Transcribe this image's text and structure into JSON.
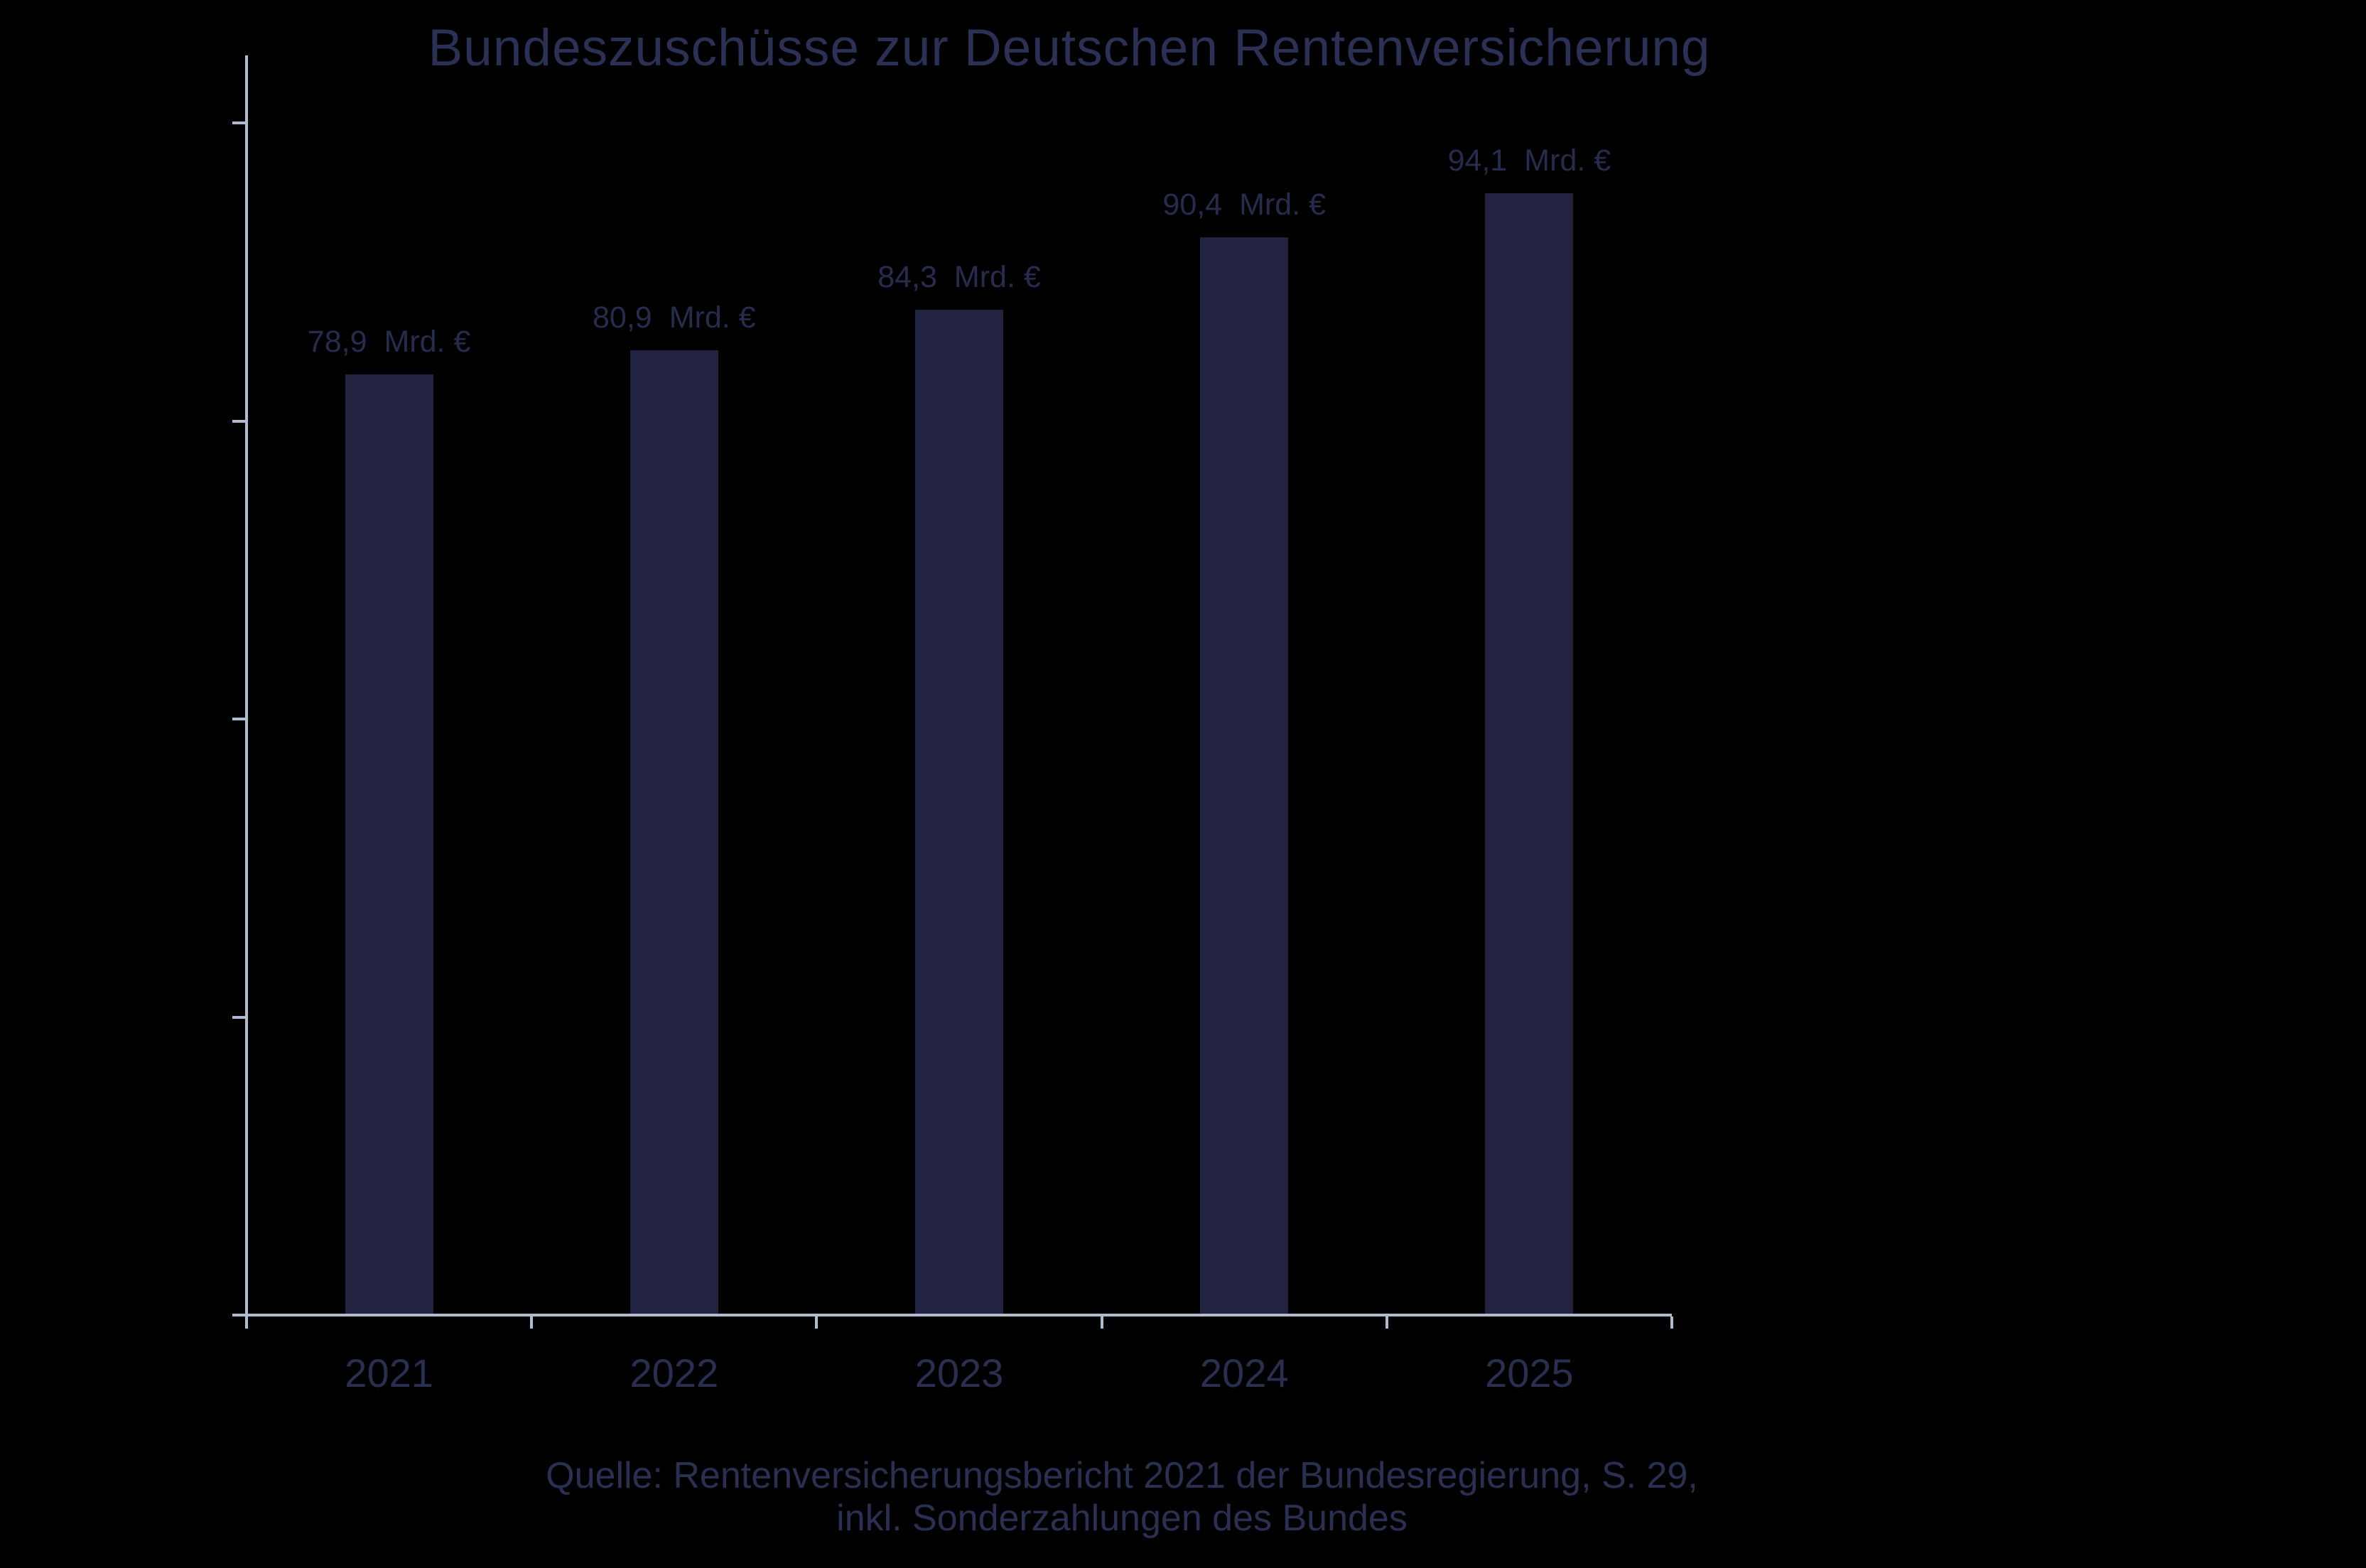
{
  "chart_data": {
    "type": "bar",
    "title": "Bundeszuschüsse zur Deutschen Rentenversicherung",
    "categories": [
      "2021",
      "2022",
      "2023",
      "2024",
      "2025"
    ],
    "values": [
      78.9,
      80.9,
      84.3,
      90.4,
      94.1
    ],
    "value_labels": [
      "78,9",
      "80,9",
      "84,3",
      "90,4",
      "94,1"
    ],
    "unit": "Mrd. €",
    "ylabel": "",
    "xlabel": "",
    "ylim": [
      0,
      105.7
    ],
    "yticks_mrd": [
      0,
      25,
      50,
      75,
      100
    ],
    "grid": "off",
    "legend": "none",
    "source_lines": [
      "Quelle: Rentenversicherungsbericht 2021 der Bundesregierung, S. 29,",
      "inkl. Sonderzahlungen des Bundes"
    ],
    "colors": {
      "background": "#000000",
      "bar": "#212340",
      "axis": "#aebcd1",
      "title_text": "#2b3055",
      "value_text": "#282c4c",
      "category_text": "#2b2f4f",
      "source_text": "#2b3052"
    }
  }
}
